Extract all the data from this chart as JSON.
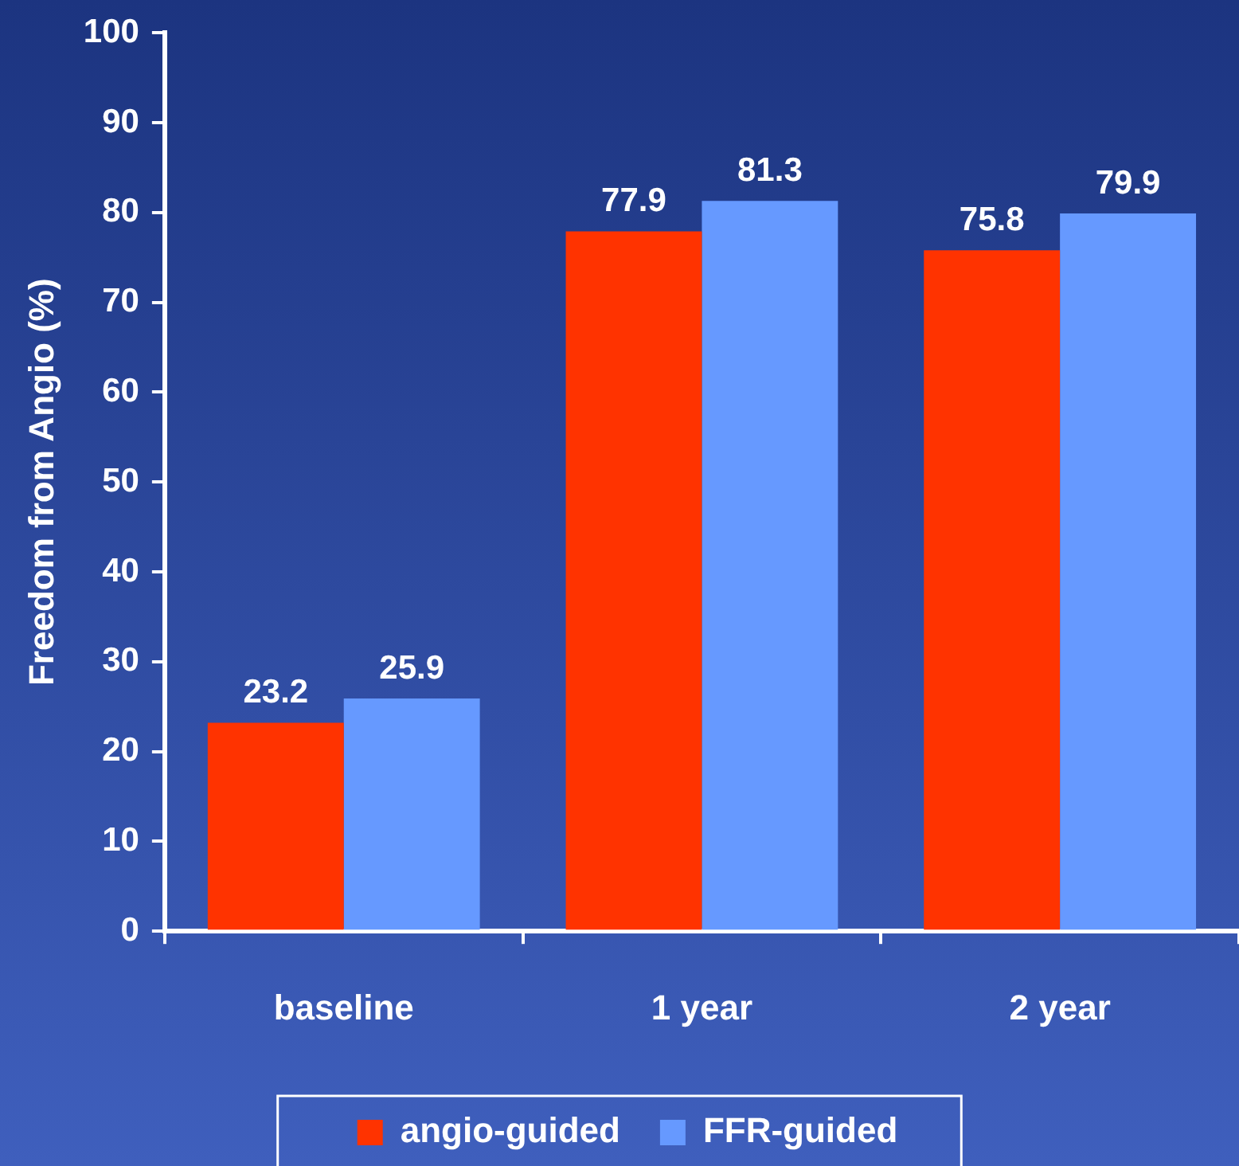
{
  "chart_data": {
    "type": "bar",
    "ylabel": "Freedom from Angio (%)",
    "categories": [
      "baseline",
      "1 year",
      "2 year"
    ],
    "series": [
      {
        "name": "angio-guided",
        "color": "#ff3300",
        "values": [
          23.2,
          77.9,
          75.8
        ]
      },
      {
        "name": "FFR-guided",
        "color": "#6699ff",
        "values": [
          25.9,
          81.3,
          79.9
        ]
      }
    ],
    "ylim": [
      0,
      100
    ],
    "yticks": [
      0,
      10,
      20,
      30,
      40,
      50,
      60,
      70,
      80,
      90,
      100
    ],
    "grid": false,
    "legend": "bottom",
    "data_labels": true
  }
}
